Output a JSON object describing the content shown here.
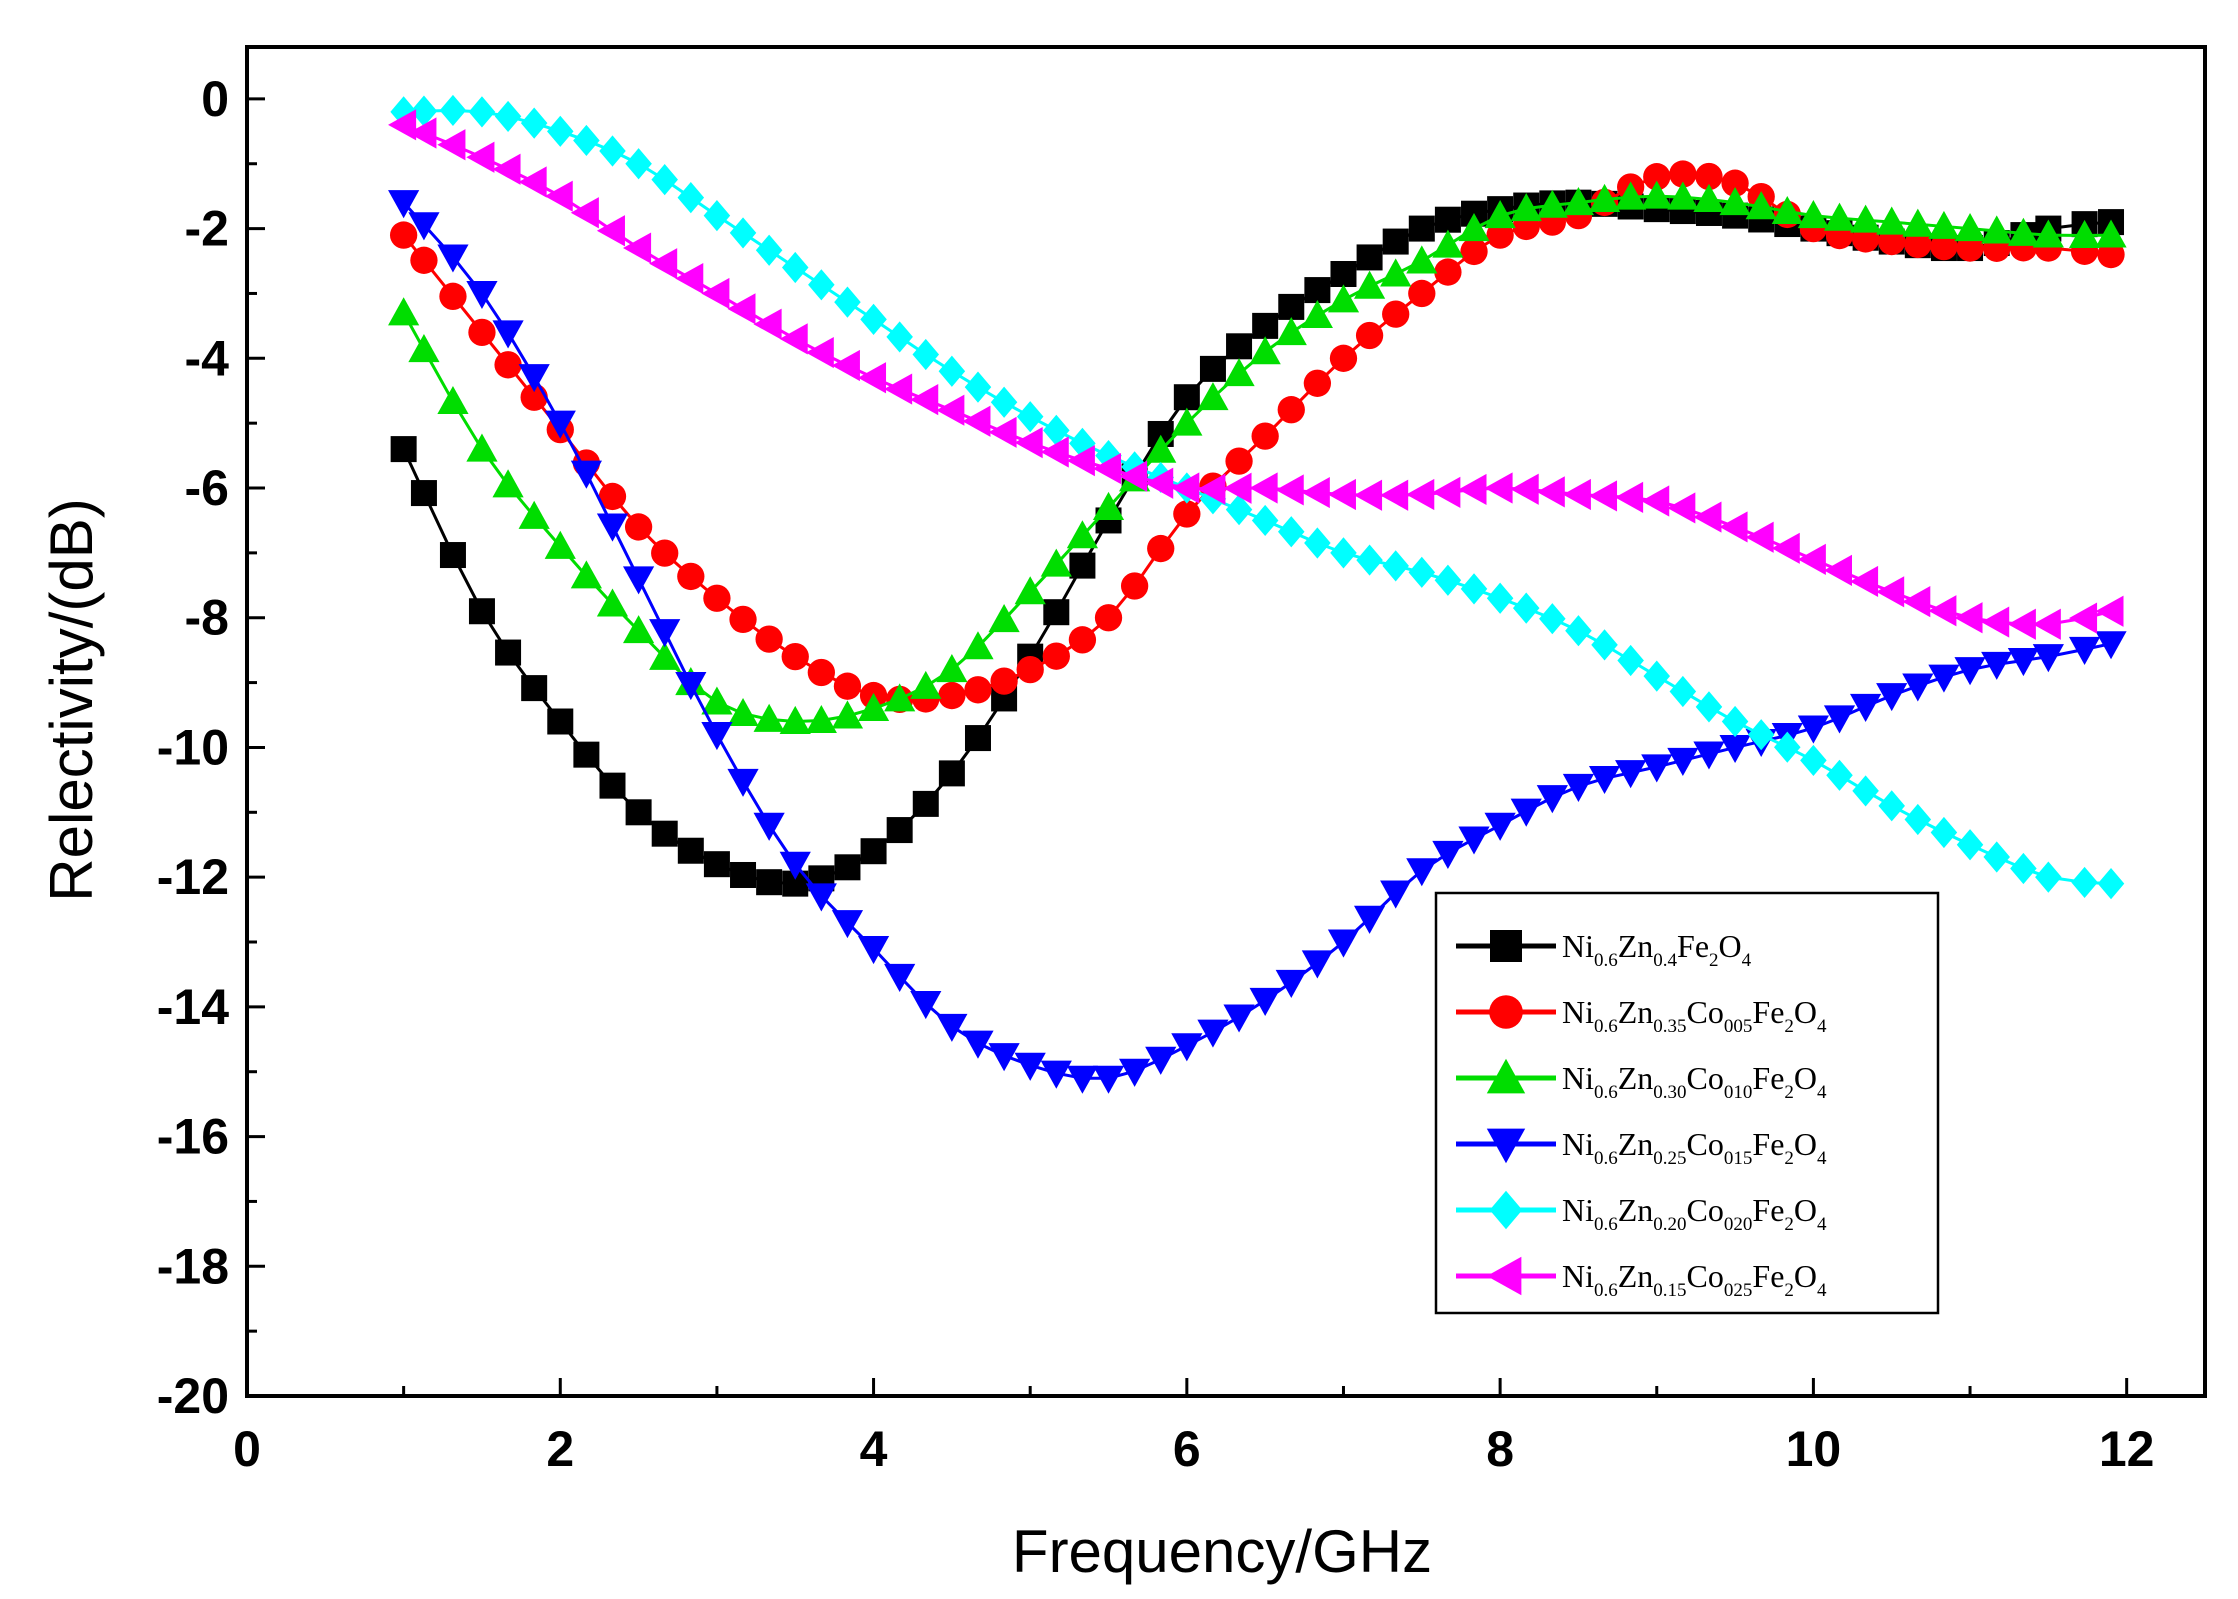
{
  "chart_data": {
    "type": "line",
    "title": "",
    "xlabel": "Frequency/GHz",
    "ylabel": "Relectivity/(dB)",
    "xlim": [
      0,
      12.5
    ],
    "ylim": [
      -20,
      0.8
    ],
    "xticks": [
      0,
      2,
      4,
      6,
      8,
      10,
      12
    ],
    "yticks": [
      0,
      -2,
      -4,
      -6,
      -8,
      -10,
      -12,
      -14,
      -16,
      -18,
      -20
    ],
    "legend_position": "bottom-right",
    "legend": [
      {
        "name": "Ni0.6Zn0.4Fe2O4",
        "parts": [
          [
            "Ni",
            ""
          ],
          [
            "0.6",
            "s"
          ],
          [
            "Zn",
            ""
          ],
          [
            "0.4",
            "s"
          ],
          [
            "Fe",
            ""
          ],
          [
            "2",
            "s"
          ],
          [
            "O",
            ""
          ],
          [
            "4",
            "s"
          ]
        ]
      },
      {
        "name": "Ni0.6Zn0.35Co005Fe2O4",
        "parts": [
          [
            "Ni",
            ""
          ],
          [
            "0.6",
            "s"
          ],
          [
            "Zn",
            ""
          ],
          [
            "0.35",
            "s"
          ],
          [
            "Co",
            ""
          ],
          [
            "005",
            "s"
          ],
          [
            "Fe",
            ""
          ],
          [
            "2",
            "s"
          ],
          [
            "O",
            ""
          ],
          [
            "4",
            "s"
          ]
        ]
      },
      {
        "name": "Ni0.6Zn0.30Co010Fe2O4",
        "parts": [
          [
            "Ni",
            ""
          ],
          [
            "0.6",
            "s"
          ],
          [
            "Zn",
            ""
          ],
          [
            "0.30",
            "s"
          ],
          [
            "Co",
            ""
          ],
          [
            "010",
            "s"
          ],
          [
            "Fe",
            ""
          ],
          [
            "2",
            "s"
          ],
          [
            "O",
            ""
          ],
          [
            "4",
            "s"
          ]
        ]
      },
      {
        "name": "Ni0.6Zn0.25Co015Fe2O4",
        "parts": [
          [
            "Ni",
            ""
          ],
          [
            "0.6",
            "s"
          ],
          [
            "Zn",
            ""
          ],
          [
            "0.25",
            "s"
          ],
          [
            "Co",
            ""
          ],
          [
            "015",
            "s"
          ],
          [
            "Fe",
            ""
          ],
          [
            "2",
            "s"
          ],
          [
            "O",
            ""
          ],
          [
            "4",
            "s"
          ]
        ]
      },
      {
        "name": "Ni0.6Zn0.20Co020Fe2O4",
        "parts": [
          [
            "Ni",
            ""
          ],
          [
            "0.6",
            "s"
          ],
          [
            "Zn",
            ""
          ],
          [
            "0.20",
            "s"
          ],
          [
            "Co",
            ""
          ],
          [
            "020",
            "s"
          ],
          [
            "Fe",
            ""
          ],
          [
            "2",
            "s"
          ],
          [
            "O",
            ""
          ],
          [
            "4",
            "s"
          ]
        ]
      },
      {
        "name": "Ni0.6Zn0.15Co025Fe2O4",
        "parts": [
          [
            "Ni",
            ""
          ],
          [
            "0.6",
            "s"
          ],
          [
            "Zn",
            ""
          ],
          [
            "0.15",
            "s"
          ],
          [
            "Co",
            ""
          ],
          [
            "025",
            "s"
          ],
          [
            "Fe",
            ""
          ],
          [
            "2",
            "s"
          ],
          [
            "O",
            ""
          ],
          [
            "4",
            "s"
          ]
        ]
      }
    ],
    "series": [
      {
        "name": "Ni0.6Zn0.4Fe2O4",
        "color": "#000000",
        "marker": "square",
        "x": [
          1.0,
          1.5,
          2.0,
          2.5,
          3.0,
          3.5,
          4.0,
          4.5,
          5.0,
          5.5,
          6.0,
          6.5,
          7.0,
          7.5,
          8.0,
          8.5,
          9.0,
          9.5,
          10.0,
          10.5,
          11.0,
          11.5,
          11.9
        ],
        "y": [
          -5.4,
          -7.9,
          -9.6,
          -11.0,
          -11.8,
          -12.1,
          -11.6,
          -10.4,
          -8.6,
          -6.5,
          -4.6,
          -3.5,
          -2.7,
          -2.0,
          -1.7,
          -1.6,
          -1.7,
          -1.8,
          -2.0,
          -2.2,
          -2.3,
          -2.0,
          -1.9
        ]
      },
      {
        "name": "Ni0.6Zn0.35Co005Fe2O4",
        "color": "#ff0000",
        "marker": "circle",
        "x": [
          1.0,
          1.5,
          2.0,
          2.5,
          3.0,
          3.5,
          4.0,
          4.5,
          5.0,
          5.5,
          6.0,
          6.5,
          7.0,
          7.5,
          8.0,
          8.5,
          9.0,
          9.5,
          10.0,
          10.5,
          11.0,
          11.5,
          11.9
        ],
        "y": [
          -2.1,
          -3.6,
          -5.1,
          -6.6,
          -7.7,
          -8.6,
          -9.2,
          -9.2,
          -8.8,
          -8.0,
          -6.4,
          -5.2,
          -4.0,
          -3.0,
          -2.1,
          -1.8,
          -1.2,
          -1.3,
          -2.0,
          -2.2,
          -2.3,
          -2.3,
          -2.4
        ]
      },
      {
        "name": "Ni0.6Zn0.30Co010Fe2O4",
        "color": "#00dd00",
        "marker": "triangle-up",
        "x": [
          1.0,
          1.5,
          2.0,
          2.5,
          3.0,
          3.5,
          4.0,
          4.5,
          5.0,
          5.5,
          6.0,
          6.5,
          7.0,
          7.5,
          8.0,
          8.5,
          9.0,
          9.5,
          10.0,
          10.5,
          11.0,
          11.5,
          11.9
        ],
        "y": [
          -3.3,
          -5.4,
          -6.9,
          -8.2,
          -9.3,
          -9.6,
          -9.4,
          -8.8,
          -7.6,
          -6.3,
          -5.0,
          -3.9,
          -3.1,
          -2.5,
          -1.8,
          -1.6,
          -1.5,
          -1.6,
          -1.8,
          -1.9,
          -2.0,
          -2.1,
          -2.1
        ]
      },
      {
        "name": "Ni0.6Zn0.25Co015Fe2O4",
        "color": "#0000ff",
        "marker": "triangle-down",
        "x": [
          1.0,
          1.5,
          2.0,
          2.5,
          3.0,
          3.5,
          4.0,
          4.5,
          5.0,
          5.5,
          6.0,
          6.5,
          7.0,
          7.5,
          8.0,
          8.5,
          9.0,
          9.5,
          10.0,
          10.5,
          11.0,
          11.5,
          11.9
        ],
        "y": [
          -1.6,
          -3.0,
          -5.0,
          -7.4,
          -9.8,
          -11.8,
          -13.1,
          -14.3,
          -14.9,
          -15.1,
          -14.6,
          -13.9,
          -13.0,
          -11.9,
          -11.2,
          -10.6,
          -10.3,
          -10.0,
          -9.7,
          -9.2,
          -8.8,
          -8.6,
          -8.4
        ]
      },
      {
        "name": "Ni0.6Zn0.20Co020Fe2O4",
        "color": "#00ffff",
        "marker": "diamond",
        "x": [
          1.0,
          1.5,
          2.0,
          2.5,
          3.0,
          3.5,
          4.0,
          4.5,
          5.0,
          5.5,
          6.0,
          6.5,
          7.0,
          7.5,
          8.0,
          8.5,
          9.0,
          9.5,
          10.0,
          10.5,
          11.0,
          11.5,
          11.9
        ],
        "y": [
          -0.2,
          -0.2,
          -0.5,
          -1.0,
          -1.8,
          -2.6,
          -3.4,
          -4.2,
          -4.9,
          -5.5,
          -6.0,
          -6.5,
          -7.0,
          -7.3,
          -7.7,
          -8.2,
          -8.9,
          -9.6,
          -10.2,
          -10.9,
          -11.5,
          -12.0,
          -12.1
        ]
      },
      {
        "name": "Ni0.6Zn0.15Co025Fe2O4",
        "color": "#ff00ff",
        "marker": "triangle-left",
        "x": [
          1.0,
          1.5,
          2.0,
          2.5,
          3.0,
          3.5,
          4.0,
          4.5,
          5.0,
          5.5,
          6.0,
          6.5,
          7.0,
          7.5,
          8.0,
          8.5,
          9.0,
          9.5,
          10.0,
          10.5,
          11.0,
          11.5,
          11.9
        ],
        "y": [
          -0.4,
          -0.9,
          -1.5,
          -2.3,
          -3.0,
          -3.7,
          -4.3,
          -4.8,
          -5.3,
          -5.7,
          -6.0,
          -6.0,
          -6.1,
          -6.1,
          -6.0,
          -6.1,
          -6.2,
          -6.6,
          -7.1,
          -7.6,
          -8.0,
          -8.1,
          -7.9
        ]
      }
    ]
  }
}
